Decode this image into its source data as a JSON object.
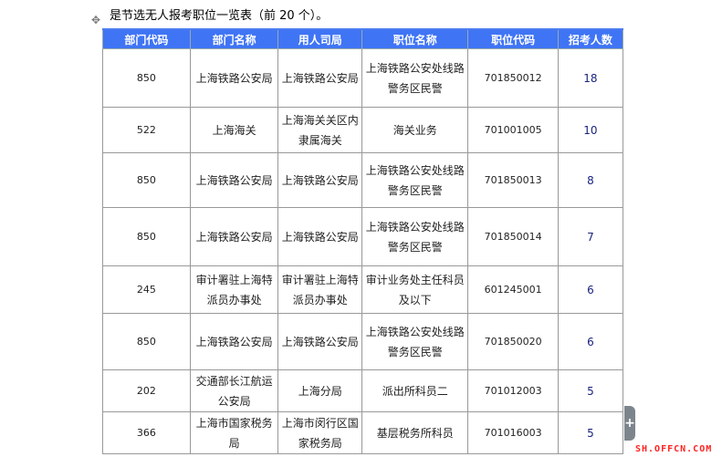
{
  "title": "是节选无人报考职位一览表（前 20 个）。",
  "headers": [
    "部门代码",
    "部门名称",
    "用人司局",
    "职位名称",
    "职位代码",
    "招考人数"
  ],
  "rows": [
    [
      "850",
      "上海铁路公安局",
      "上海铁路公安局",
      "上海铁路公安处线路警务区民警",
      "701850012",
      "18"
    ],
    [
      "522",
      "上海海关",
      "上海海关关区内隶属海关",
      "海关业务",
      "701001005",
      "10"
    ],
    [
      "850",
      "上海铁路公安局",
      "上海铁路公安局",
      "上海铁路公安处线路警务区民警",
      "701850013",
      "8"
    ],
    [
      "850",
      "上海铁路公安局",
      "上海铁路公安局",
      "上海铁路公安处线路警务区民警",
      "701850014",
      "7"
    ],
    [
      "245",
      "审计署驻上海特派员办事处",
      "审计署驻上海特派员办事处",
      "审计业务处主任科员及以下",
      "601245001",
      "6"
    ],
    [
      "850",
      "上海铁路公安局",
      "上海铁路公安局",
      "上海铁路公安处线路警务区民警",
      "701850020",
      "6"
    ],
    [
      "202",
      "交通部长江航运公安局",
      "上海分局",
      "派出所科员二",
      "701012003",
      "5"
    ],
    [
      "366",
      "上海市国家税务局",
      "上海市闵行区国家税务局",
      "基层税务所科员",
      "701016003",
      "5"
    ]
  ],
  "expand_label": "+",
  "watermark": "SH.OFFCN.COM"
}
